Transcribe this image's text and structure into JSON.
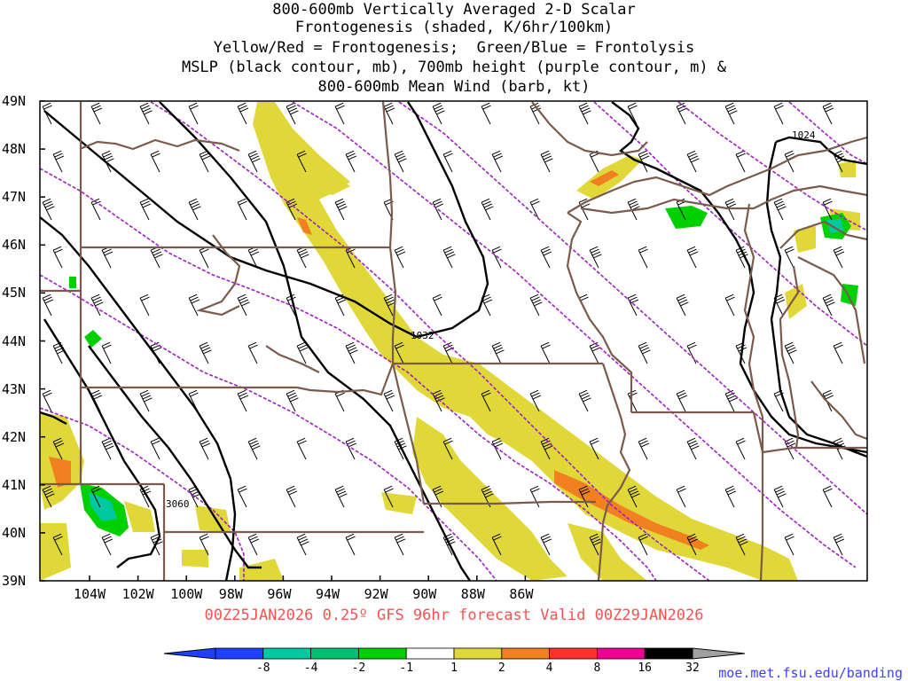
{
  "title_lines": [
    "800-600mb Vertically Averaged 2-D Scalar",
    "Frontogenesis (shaded, K/6hr/100km)",
    "Yellow/Red = Frontogenesis;  Green/Blue = Frontolysis",
    "MSLP (black contour, mb), 700mb height (purple contour, m) &",
    "800-600mb Mean Wind (barb, kt)"
  ],
  "lat_labels": [
    "49N",
    "48N",
    "47N",
    "46N",
    "45N",
    "44N",
    "43N",
    "42N",
    "41N",
    "40N",
    "39N"
  ],
  "lon_labels": [
    "104W",
    "102W",
    "100W",
    "98W",
    "96W",
    "94W",
    "92W",
    "90W",
    "88W",
    "86W"
  ],
  "contour_labels": {
    "mslp_high": "1032",
    "mslp_ne": "1024",
    "height_sw": "3060"
  },
  "valid_text": "00Z25JAN2026 0.25º GFS 96hr forecast Valid 00Z29JAN2026",
  "credit": "moe.met.fsu.edu/banding",
  "colorbar": {
    "labels": [
      "-8",
      "-4",
      "-2",
      "-1",
      "1",
      "2",
      "4",
      "8",
      "16",
      "32"
    ],
    "colors": [
      "#2040ff",
      "#00c8a0",
      "#00c070",
      "#00d000",
      "#ffffff",
      "#e0d838",
      "#f08020",
      "#ff3030",
      "#f00090",
      "#000000"
    ],
    "under_color": "#2040ff",
    "over_color": "#a0a0a0"
  },
  "colors": {
    "mslp": "#000000",
    "height": "#a020c0",
    "borders": "#7a5a4a",
    "frontogenesis_weak": "#e0d838",
    "frontogenesis_mod": "#f08020",
    "frontogenesis_strong": "#ff3030",
    "frontolysis_weak": "#00d000",
    "frontolysis_mod": "#00c8a0"
  }
}
